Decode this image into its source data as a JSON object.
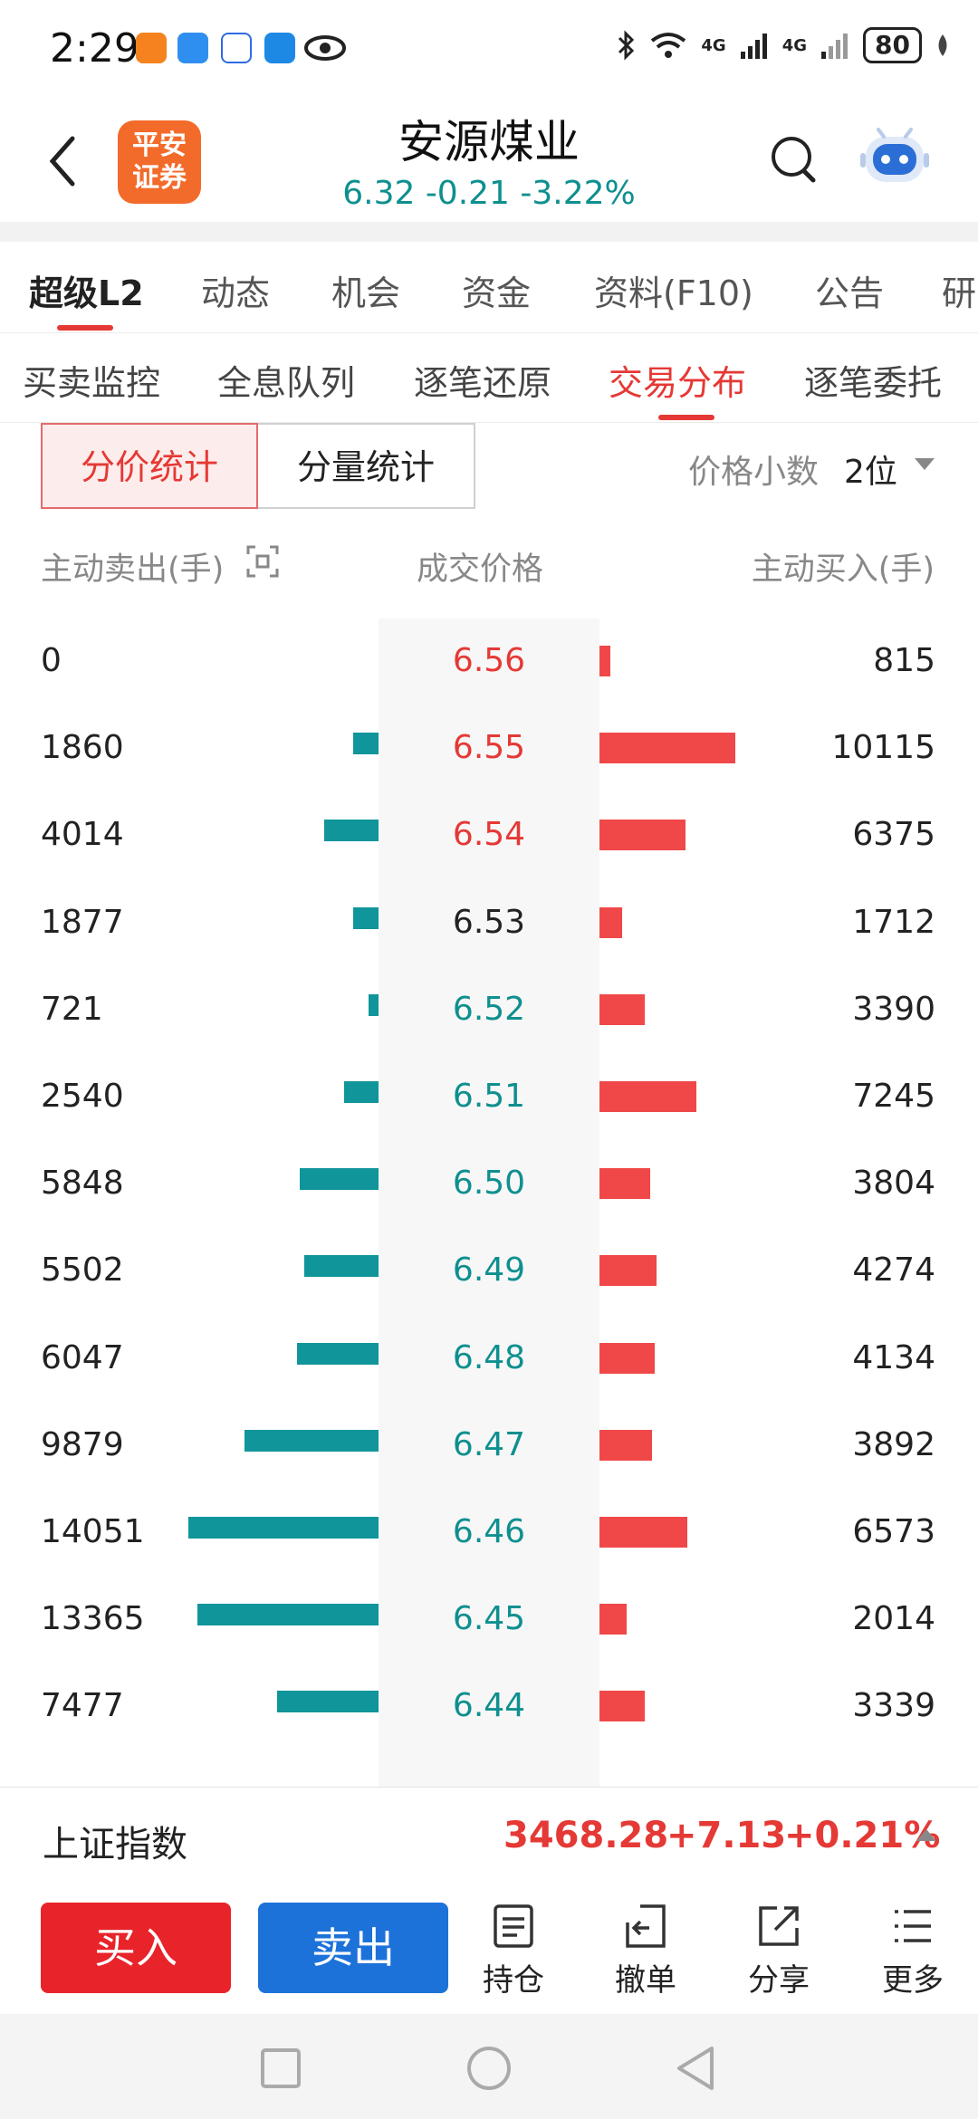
{
  "status_bar": {
    "time": "2:29",
    "network1": "4G",
    "network2": "4G",
    "battery": "80"
  },
  "header": {
    "stock_name": "安源煤业",
    "quote": "6.32  -0.21  -3.22%",
    "logo_text": "平安证券"
  },
  "main_tabs": [
    {
      "label": "超级L2",
      "active": true
    },
    {
      "label": "动态"
    },
    {
      "label": "机会"
    },
    {
      "label": "资金"
    },
    {
      "label": "资料(F10)"
    },
    {
      "label": "公告"
    },
    {
      "label": "研"
    }
  ],
  "sub_tabs": [
    {
      "label": "买卖监控"
    },
    {
      "label": "全息队列"
    },
    {
      "label": "逐笔还原"
    },
    {
      "label": "交易分布",
      "active": true
    },
    {
      "label": "逐笔委托"
    }
  ],
  "segmented": {
    "price_stats": "分价统计",
    "volume_stats": "分量统计"
  },
  "decimal": {
    "label": "价格小数",
    "value": "2位"
  },
  "columns": {
    "sell": "主动卖出(手)",
    "price": "成交价格",
    "buy": "主动买入(手)"
  },
  "colors": {
    "up": "#e53935",
    "down": "#0f8f8f",
    "flat": "#222222",
    "sell_bar": "#10959a",
    "buy_bar": "#f04848"
  },
  "distribution": [
    {
      "sell": "0",
      "price": "6.56",
      "buy": "815",
      "sell_num": 0,
      "buy_num": 815,
      "trend": "up"
    },
    {
      "sell": "1860",
      "price": "6.55",
      "buy": "10115",
      "sell_num": 1860,
      "buy_num": 10115,
      "trend": "up"
    },
    {
      "sell": "4014",
      "price": "6.54",
      "buy": "6375",
      "sell_num": 4014,
      "buy_num": 6375,
      "trend": "up"
    },
    {
      "sell": "1877",
      "price": "6.53",
      "buy": "1712",
      "sell_num": 1877,
      "buy_num": 1712,
      "trend": "flat"
    },
    {
      "sell": "721",
      "price": "6.52",
      "buy": "3390",
      "sell_num": 721,
      "buy_num": 3390,
      "trend": "down"
    },
    {
      "sell": "2540",
      "price": "6.51",
      "buy": "7245",
      "sell_num": 2540,
      "buy_num": 7245,
      "trend": "down"
    },
    {
      "sell": "5848",
      "price": "6.50",
      "buy": "3804",
      "sell_num": 5848,
      "buy_num": 3804,
      "trend": "down"
    },
    {
      "sell": "5502",
      "price": "6.49",
      "buy": "4274",
      "sell_num": 5502,
      "buy_num": 4274,
      "trend": "down"
    },
    {
      "sell": "6047",
      "price": "6.48",
      "buy": "4134",
      "sell_num": 6047,
      "buy_num": 4134,
      "trend": "down"
    },
    {
      "sell": "9879",
      "price": "6.47",
      "buy": "3892",
      "sell_num": 9879,
      "buy_num": 3892,
      "trend": "down"
    },
    {
      "sell": "14051",
      "price": "6.46",
      "buy": "6573",
      "sell_num": 14051,
      "buy_num": 6573,
      "trend": "down"
    },
    {
      "sell": "13365",
      "price": "6.45",
      "buy": "2014",
      "sell_num": 13365,
      "buy_num": 2014,
      "trend": "down"
    },
    {
      "sell": "7477",
      "price": "6.44",
      "buy": "3339",
      "sell_num": 7477,
      "buy_num": 3339,
      "trend": "down"
    }
  ],
  "index_bar": {
    "name": "上证指数",
    "value": "3468.28",
    "change": "+7.13",
    "percent": "+0.21%"
  },
  "actions": {
    "buy": "买入",
    "sell": "卖出",
    "holdings": "持仓",
    "cancel": "撤单",
    "share": "分享",
    "more": "更多"
  }
}
